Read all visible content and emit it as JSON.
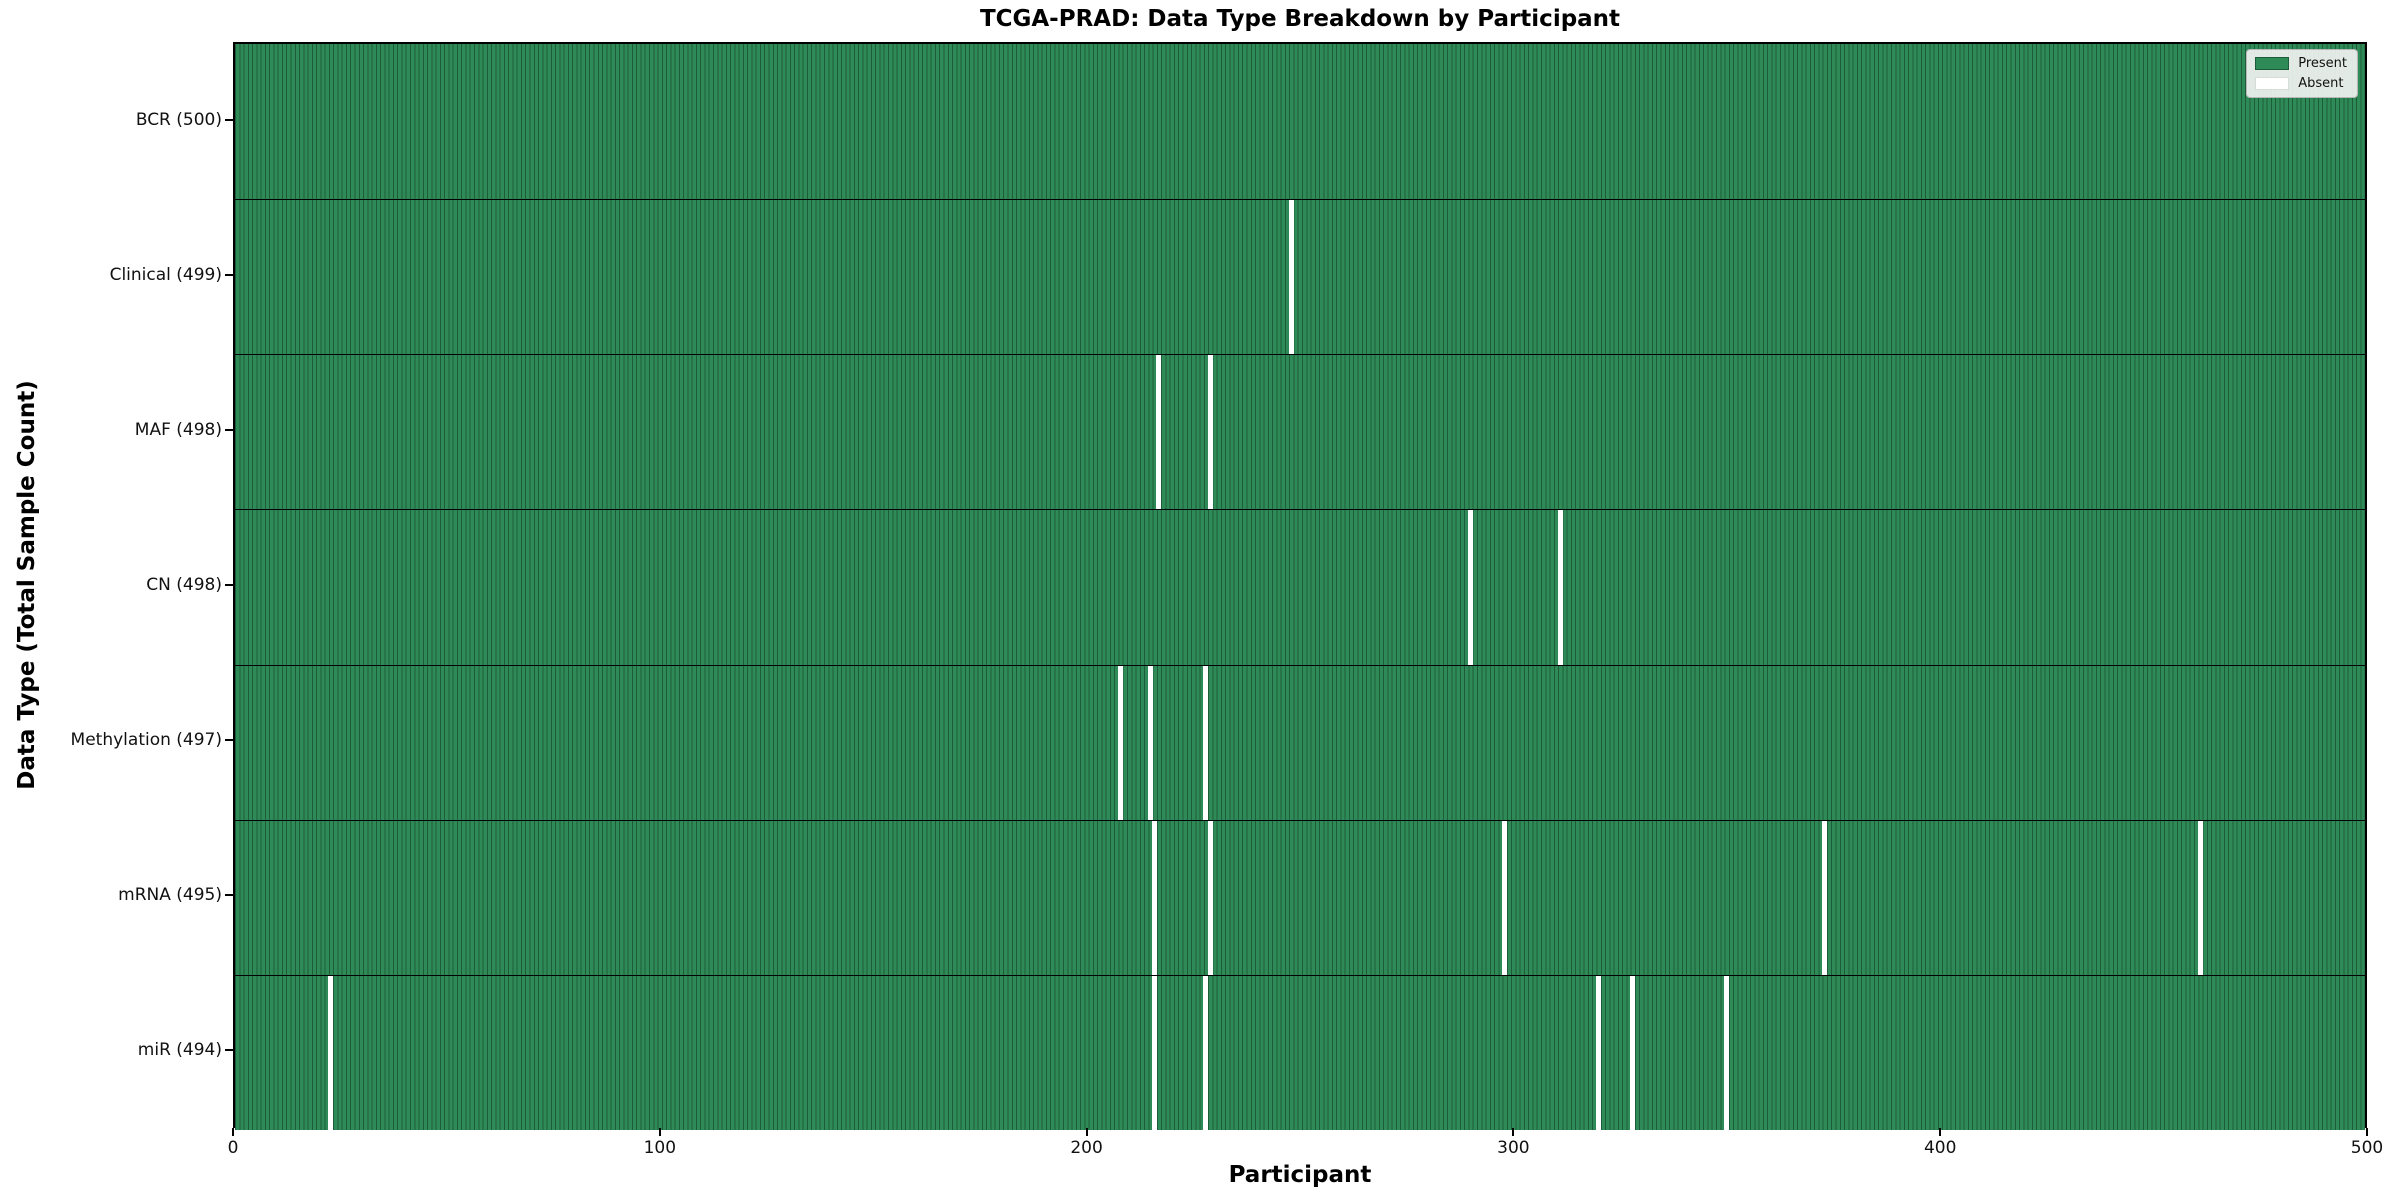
{
  "title": "TCGA-PRAD: Data Type Breakdown by Participant",
  "xlabel": "Participant",
  "ylabel": "Data Type (Total Sample Count)",
  "legend": {
    "present_label": "Present",
    "absent_label": "Absent"
  },
  "colors": {
    "present": "#2e8b57",
    "bar_edge": "#1d5c39",
    "absent": "#ffffff",
    "legend_bg": "#f2f2f2",
    "axis": "#000000"
  },
  "chart_data": {
    "type": "heatmap",
    "title": "TCGA-PRAD: Data Type Breakdown by Participant",
    "xlabel": "Participant",
    "ylabel": "Data Type (Total Sample Count)",
    "x_range": [
      0,
      500
    ],
    "x_ticks": [
      0,
      100,
      200,
      300,
      400,
      500
    ],
    "n_participants": 500,
    "legend_entries": [
      "Present",
      "Absent"
    ],
    "legend_position": "upper right",
    "grid": false,
    "rows": [
      {
        "data_type": "BCR",
        "label": "BCR (500)",
        "total": 500,
        "absent_participants": []
      },
      {
        "data_type": "Clinical",
        "label": "Clinical (499)",
        "total": 499,
        "absent_participants": [
          247
        ]
      },
      {
        "data_type": "MAF",
        "label": "MAF (498)",
        "total": 498,
        "absent_participants": [
          216,
          228
        ]
      },
      {
        "data_type": "CN",
        "label": "CN (498)",
        "total": 498,
        "absent_participants": [
          289,
          310
        ]
      },
      {
        "data_type": "Methylation",
        "label": "Methylation (497)",
        "total": 497,
        "absent_participants": [
          207,
          214,
          227
        ]
      },
      {
        "data_type": "mRNA",
        "label": "mRNA (495)",
        "total": 495,
        "absent_participants": [
          215,
          228,
          297,
          372,
          460
        ]
      },
      {
        "data_type": "miR",
        "label": "miR (494)",
        "total": 494,
        "absent_participants": [
          22,
          215,
          227,
          319,
          327,
          349
        ]
      }
    ]
  }
}
